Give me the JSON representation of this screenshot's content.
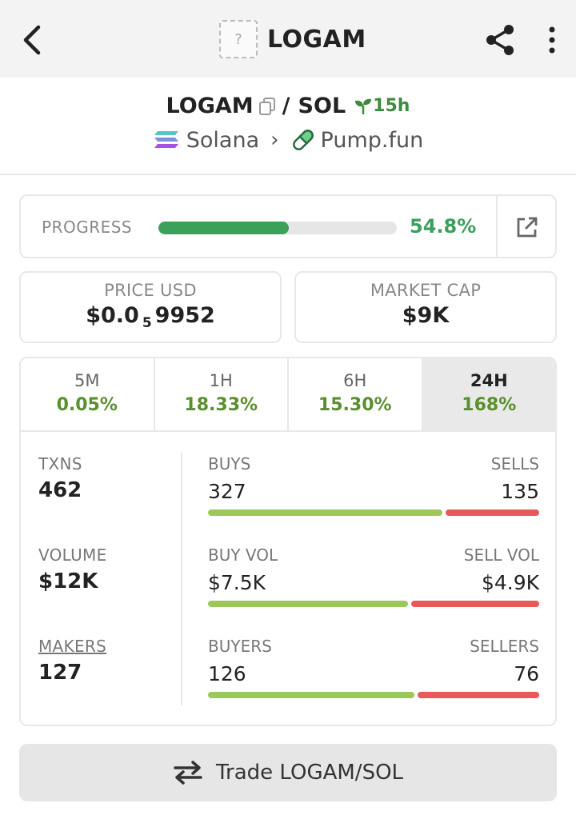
{
  "header": {
    "title": "LOGAM",
    "placeholder": "?",
    "icons": [
      "back-arrow-icon",
      "share-icon",
      "more-vertical-icon"
    ]
  },
  "pair": {
    "base": "LOGAM",
    "separator": "/",
    "quote": "SOL",
    "age": "15h",
    "chain": "Solana",
    "dex": "Pump.fun"
  },
  "progress": {
    "label": "PROGRESS",
    "percent_text": "54.8%",
    "fill_fraction": 0.548
  },
  "price": {
    "label": "PRICE USD",
    "prefix": "$0.0",
    "zeros": "5",
    "digits": "9952"
  },
  "market_cap": {
    "label": "MARKET CAP",
    "value": "$9K"
  },
  "tabs": [
    {
      "label": "5M",
      "value": "0.05%"
    },
    {
      "label": "1H",
      "value": "18.33%"
    },
    {
      "label": "6H",
      "value": "15.30%"
    },
    {
      "label": "24H",
      "value": "168%"
    }
  ],
  "active_tab": "24H",
  "txns": {
    "label": "TXNS",
    "value": "462"
  },
  "volume": {
    "label": "VOLUME",
    "value": "$12K"
  },
  "makers": {
    "label": "MAKERS",
    "value": "127"
  },
  "buys_sells": {
    "left_label": "BUYS",
    "right_label": "SELLS",
    "left_value": "327",
    "right_value": "135",
    "left_fraction": 0.708
  },
  "vol_split": {
    "left_label": "BUY VOL",
    "right_label": "SELL VOL",
    "left_value": "$7.5K",
    "right_value": "$4.9K",
    "left_fraction": 0.605
  },
  "buyers_sellers": {
    "left_label": "BUYERS",
    "right_label": "SELLERS",
    "left_value": "126",
    "right_value": "76",
    "left_fraction": 0.624
  },
  "trade": {
    "label": "Trade LOGAM/SOL"
  },
  "colors": {
    "green": "#3aa05a",
    "lime": "#9cc85a",
    "red": "#e85a5a",
    "tab_green": "#5a8f2e"
  }
}
